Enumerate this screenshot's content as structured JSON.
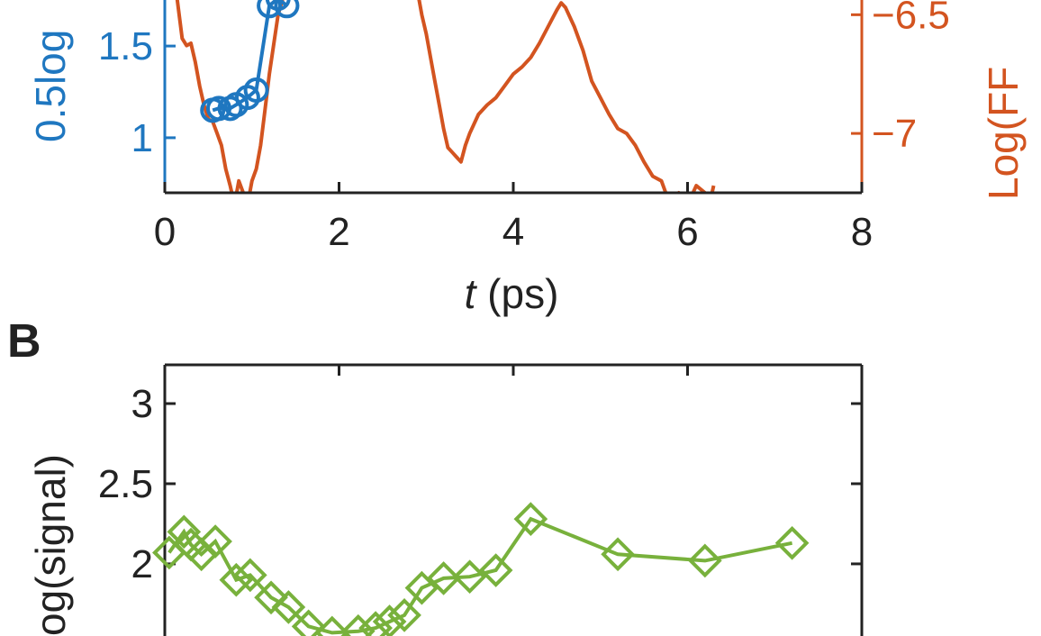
{
  "colors": {
    "blue": "#1f77c0",
    "orange": "#d35420",
    "green": "#78b13c",
    "black": "#222222"
  },
  "panel_b_letter": "B",
  "chart_data": [
    {
      "type": "line",
      "panel": "A",
      "xlabel_italic": "t",
      "xlabel_rest": " (ps)",
      "ylabel_left": "0.5log",
      "ylabel_right": "Log(FF",
      "xlim": [
        0,
        8
      ],
      "ylim_left": [
        0.7,
        1.8
      ],
      "ylim_right": [
        -7.25,
        -6.4
      ],
      "x_ticks": [
        0,
        2,
        4,
        6,
        8
      ],
      "x_tick_labels": [
        "0",
        "2",
        "4",
        "6",
        "8"
      ],
      "y_left_ticks": [
        1,
        1.5
      ],
      "y_left_tick_labels": [
        "1",
        "1.5"
      ],
      "y_right_ticks": [
        -7,
        -6.5
      ],
      "y_right_tick_labels": [
        "−7",
        "−6.5"
      ],
      "series": [
        {
          "axis": "left",
          "color": "blue",
          "marker": "circle",
          "x": [
            0.55,
            0.62,
            0.75,
            0.82,
            0.95,
            1.05,
            1.2,
            1.3,
            1.4
          ],
          "y": [
            1.15,
            1.16,
            1.16,
            1.18,
            1.22,
            1.26,
            1.72,
            1.76,
            1.72
          ]
        },
        {
          "axis": "right",
          "color": "orange",
          "marker": "none",
          "x": [
            0.13,
            0.2,
            0.25,
            0.3,
            0.35,
            0.4,
            0.45,
            0.5,
            0.55,
            0.6,
            0.65,
            0.7,
            0.75,
            0.8,
            0.85,
            0.9,
            0.95,
            1.0,
            1.05,
            1.1,
            1.15,
            1.2,
            1.3,
            1.38,
            2.9,
            2.95,
            3.0,
            3.05,
            3.1,
            3.15,
            3.2,
            3.25,
            3.3,
            3.35,
            3.4,
            3.45,
            3.5,
            3.6,
            3.7,
            3.8,
            3.9,
            4.0,
            4.1,
            4.2,
            4.3,
            4.4,
            4.5,
            4.55,
            4.6,
            4.7,
            4.8,
            4.9,
            5.0,
            5.1,
            5.2,
            5.3,
            5.4,
            5.5,
            5.6,
            5.7,
            5.75,
            5.8,
            5.85,
            5.9,
            6.0,
            6.1,
            6.2,
            6.25,
            6.3
          ],
          "y": [
            -6.4,
            -6.6,
            -6.63,
            -6.62,
            -6.7,
            -6.8,
            -6.88,
            -6.94,
            -6.95,
            -7.0,
            -7.05,
            -7.15,
            -7.22,
            -7.3,
            -7.2,
            -7.25,
            -7.3,
            -7.2,
            -7.15,
            -7.05,
            -6.9,
            -6.75,
            -6.5,
            -6.4,
            -6.4,
            -6.5,
            -6.58,
            -6.68,
            -6.78,
            -6.88,
            -6.98,
            -7.06,
            -7.08,
            -7.1,
            -7.12,
            -7.05,
            -7.0,
            -6.92,
            -6.88,
            -6.85,
            -6.8,
            -6.75,
            -6.72,
            -6.68,
            -6.62,
            -6.55,
            -6.48,
            -6.45,
            -6.47,
            -6.55,
            -6.65,
            -6.78,
            -6.85,
            -6.92,
            -6.98,
            -7.0,
            -7.05,
            -7.12,
            -7.18,
            -7.2,
            -7.25,
            -7.3,
            -7.28,
            -7.25,
            -7.3,
            -7.22,
            -7.25,
            -7.3,
            -7.22
          ]
        }
      ]
    },
    {
      "type": "line",
      "panel": "B",
      "ylabel": "og(signal)",
      "xlim": [
        0,
        8
      ],
      "ylim": [
        1.5,
        3.2
      ],
      "y_ticks": [
        2,
        2.5,
        3
      ],
      "y_tick_labels": [
        "2",
        "2.5",
        "3"
      ],
      "series": [
        {
          "color": "green",
          "marker": "diamond",
          "x": [
            0.05,
            0.22,
            0.3,
            0.42,
            0.58,
            0.82,
            0.98,
            1.22,
            1.42,
            1.65,
            1.92,
            2.22,
            2.42,
            2.58,
            2.75,
            2.95,
            3.2,
            3.5,
            3.8,
            4.2,
            5.2,
            6.2,
            7.2
          ],
          "y": [
            2.07,
            2.2,
            2.12,
            2.06,
            2.14,
            1.9,
            1.93,
            1.79,
            1.73,
            1.61,
            1.57,
            1.58,
            1.6,
            1.64,
            1.68,
            1.85,
            1.91,
            1.92,
            1.96,
            2.28,
            2.06,
            2.02,
            2.13
          ]
        }
      ]
    }
  ]
}
